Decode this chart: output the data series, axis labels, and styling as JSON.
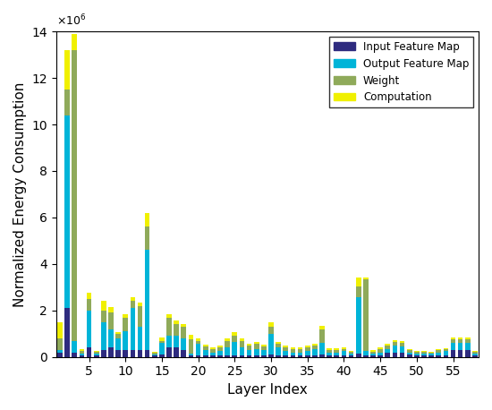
{
  "title": "",
  "xlabel": "Layer Index",
  "ylabel": "Normalized Energy Consumption",
  "xlim": [
    0.5,
    58.5
  ],
  "ylim": [
    0,
    14000000
  ],
  "legend_labels": [
    "Input Feature Map",
    "Output Feature Map",
    "Weight",
    "Computation"
  ],
  "colors": [
    "#2e2b7f",
    "#00b4d8",
    "#8faa5a",
    "#f0f000"
  ],
  "layer_indices": [
    1,
    2,
    3,
    4,
    5,
    6,
    7,
    8,
    9,
    10,
    11,
    12,
    13,
    14,
    15,
    16,
    17,
    18,
    19,
    20,
    21,
    22,
    23,
    24,
    25,
    26,
    27,
    28,
    29,
    30,
    31,
    32,
    33,
    34,
    35,
    36,
    37,
    38,
    39,
    40,
    41,
    42,
    43,
    44,
    45,
    46,
    47,
    48,
    49,
    50,
    51,
    52,
    53,
    54,
    55,
    56,
    57,
    58
  ],
  "input_fm": [
    200000,
    2100000,
    200000,
    50000,
    400000,
    50000,
    300000,
    400000,
    300000,
    300000,
    300000,
    300000,
    300000,
    50000,
    100000,
    400000,
    400000,
    300000,
    50000,
    50000,
    50000,
    50000,
    50000,
    50000,
    50000,
    50000,
    50000,
    50000,
    50000,
    100000,
    50000,
    50000,
    50000,
    50000,
    50000,
    50000,
    100000,
    50000,
    50000,
    50000,
    50000,
    150000,
    50000,
    50000,
    50000,
    200000,
    200000,
    200000,
    100000,
    50000,
    50000,
    50000,
    50000,
    50000,
    300000,
    300000,
    300000,
    50000
  ],
  "output_fm": [
    100000,
    8300000,
    500000,
    100000,
    1600000,
    100000,
    1200000,
    800000,
    500000,
    800000,
    1800000,
    1000000,
    4300000,
    50000,
    500000,
    500000,
    500000,
    500000,
    100000,
    500000,
    250000,
    150000,
    200000,
    350000,
    600000,
    350000,
    250000,
    300000,
    250000,
    900000,
    350000,
    200000,
    150000,
    150000,
    200000,
    300000,
    500000,
    150000,
    150000,
    200000,
    100000,
    2400000,
    200000,
    100000,
    150000,
    150000,
    300000,
    250000,
    100000,
    100000,
    100000,
    80000,
    150000,
    200000,
    300000,
    300000,
    300000,
    100000
  ],
  "weight": [
    500000,
    1100000,
    12500000,
    100000,
    500000,
    80000,
    500000,
    700000,
    200000,
    600000,
    300000,
    900000,
    1000000,
    80000,
    80000,
    800000,
    500000,
    500000,
    600000,
    150000,
    150000,
    150000,
    150000,
    300000,
    250000,
    300000,
    200000,
    200000,
    150000,
    300000,
    150000,
    150000,
    150000,
    150000,
    150000,
    150000,
    600000,
    80000,
    80000,
    80000,
    80000,
    500000,
    3100000,
    80000,
    150000,
    150000,
    150000,
    150000,
    80000,
    80000,
    80000,
    40000,
    80000,
    80000,
    150000,
    150000,
    150000,
    80000
  ],
  "computation": [
    700000,
    1700000,
    700000,
    80000,
    250000,
    40000,
    400000,
    250000,
    80000,
    150000,
    150000,
    150000,
    600000,
    40000,
    150000,
    150000,
    150000,
    100000,
    200000,
    80000,
    80000,
    80000,
    80000,
    100000,
    150000,
    80000,
    80000,
    80000,
    80000,
    200000,
    80000,
    80000,
    80000,
    80000,
    80000,
    80000,
    150000,
    80000,
    80000,
    80000,
    40000,
    350000,
    80000,
    80000,
    80000,
    80000,
    80000,
    80000,
    40000,
    40000,
    40000,
    40000,
    40000,
    40000,
    80000,
    80000,
    80000,
    40000
  ],
  "bar_width": 0.7,
  "ytick_locs": [
    0,
    2000000,
    4000000,
    6000000,
    8000000,
    10000000,
    12000000,
    14000000
  ],
  "xtick_locs": [
    5,
    10,
    15,
    20,
    25,
    30,
    35,
    40,
    45,
    50,
    55
  ],
  "background_color": "#ffffff"
}
